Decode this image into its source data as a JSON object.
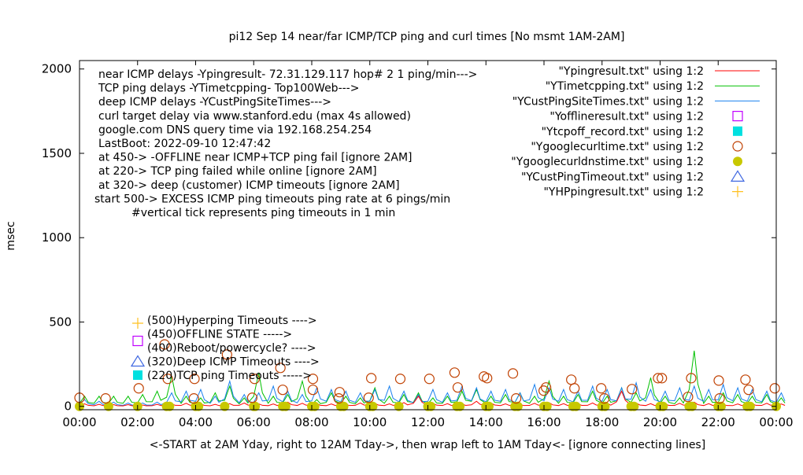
{
  "chart_data": {
    "type": "line",
    "title": "pi12 Sep 14  near/far ICMP/TCP ping and curl times [No msmt 1AM-2AM]",
    "xlabel": "<-START at 2AM Yday, right to 12AM Tday->, then wrap left to 1AM Tday<- [ignore connecting lines]",
    "ylabel": "msec",
    "xlim": [
      0,
      24
    ],
    "ylim": [
      -20,
      2050
    ],
    "x_unit": "hours",
    "x_ticks": [
      "00:00",
      "02:00",
      "04:00",
      "06:00",
      "08:00",
      "10:00",
      "12:00",
      "14:00",
      "16:00",
      "18:00",
      "20:00",
      "22:00",
      "00:00"
    ],
    "y_ticks": [
      0,
      500,
      1000,
      1500,
      2000
    ],
    "grid": false,
    "legend_position": "top-right",
    "annotations": [
      "near ICMP delays -Ypingresult- 72.31.129.117 hop# 2 1 ping/min--->",
      "TCP ping delays -YTimetcpping- Top100Web--->",
      "deep ICMP delays -YCustPingSiteTimes--->",
      "curl target delay via www.stanford.edu (max 4s allowed)",
      "google.com DNS query time via 192.168.254.254",
      "LastBoot: 2022-09-10 12:47:42",
      "at 450-> -OFFLINE near ICMP+TCP ping fail [ignore 2AM]",
      "at 220-> TCP ping failed while online [ignore 2AM]",
      "at 320-> deep (customer) ICMP timeouts [ignore 2AM]",
      "start 500-> EXCESS ICMP ping timeouts ping rate at 6 pings/min",
      "#vertical tick represents ping timeouts in 1 min"
    ],
    "key_labels": [
      {
        "text": "(500)Hyperping Timeouts ---->",
        "symbol": "plus",
        "color": "#ffc020"
      },
      {
        "text": "(450)OFFLINE STATE ----->",
        "symbol": "open-square",
        "color": "#c000ff"
      },
      {
        "text": "(400)Reboot/powercycle? ---->",
        "symbol": "none",
        "color": "#000000"
      },
      {
        "text": "(320)Deep ICMP Timeouts ---->",
        "symbol": "open-triangle",
        "color": "#4169e1"
      },
      {
        "text": "(220)TCP ping Timeouts ----->",
        "symbol": "filled-square",
        "color": "#00e0e0"
      }
    ],
    "legend": [
      {
        "name": "\"Ypingresult.txt\" using 1:2",
        "style": "line",
        "color": "#ff0000"
      },
      {
        "name": "\"YTimetcpping.txt\" using 1:2",
        "style": "line",
        "color": "#00c000"
      },
      {
        "name": "\"YCustPingSiteTimes.txt\" using 1:2",
        "style": "line",
        "color": "#1a80ee"
      },
      {
        "name": "\"Yofflineresult.txt\" using 1:2",
        "style": "open-square",
        "color": "#c000ff"
      },
      {
        "name": "\"Ytcpoff_record.txt\" using 1:2",
        "style": "filled-square",
        "color": "#00e0e0"
      },
      {
        "name": "\"Ygooglecurltime.txt\" using 1:2",
        "style": "open-circle",
        "color": "#c04000"
      },
      {
        "name": "\"Ygooglecurldnstime.txt\" using 1:2",
        "style": "filled-circle",
        "color": "#c8c800"
      },
      {
        "name": "\"YCustPingTimeout.txt\" using 1:2",
        "style": "open-triangle",
        "color": "#4169e1"
      },
      {
        "name": "\"YHPpingresult.txt\" using 1:2",
        "style": "plus",
        "color": "#ffc020"
      }
    ],
    "series": [
      {
        "key": "ping",
        "step_hours": 0.5,
        "values": [
          15,
          12,
          10,
          10,
          8,
          12,
          15,
          18,
          14,
          12,
          16,
          20,
          15,
          14,
          25,
          18,
          16,
          14,
          12,
          20,
          18,
          15,
          22,
          60,
          18,
          16,
          14,
          30,
          20,
          15,
          12,
          18,
          22,
          16,
          14,
          20,
          18,
          90,
          20,
          16,
          14,
          18,
          25,
          16,
          12,
          14,
          15,
          18,
          14
        ]
      },
      {
        "key": "tcp",
        "step_hours": 0.5,
        "values": [
          60,
          60,
          60,
          60,
          70,
          90,
          180,
          60,
          50,
          80,
          120,
          50,
          200,
          60,
          70,
          150,
          40,
          80,
          60,
          50,
          110,
          60,
          70,
          80,
          50,
          60,
          90,
          100,
          60,
          70,
          80,
          60,
          150,
          60,
          70,
          90,
          60,
          110,
          80,
          170,
          60,
          50,
          330,
          60,
          80,
          70,
          60,
          70,
          50
        ]
      },
      {
        "key": "cust",
        "step_hours": 0.5,
        "values": [
          40,
          30,
          25,
          20,
          20,
          25,
          80,
          90,
          100,
          60,
          150,
          70,
          80,
          120,
          90,
          70,
          110,
          100,
          90,
          80,
          100,
          120,
          90,
          70,
          100,
          80,
          120,
          110,
          90,
          100,
          80,
          130,
          110,
          100,
          90,
          120,
          100,
          110,
          140,
          100,
          90,
          110,
          120,
          100,
          130,
          110,
          100,
          90,
          80
        ]
      }
    ],
    "curl_points": [
      [
        0.0,
        51
      ],
      [
        0.9,
        47
      ],
      [
        2.04,
        107
      ],
      [
        2.93,
        367
      ],
      [
        3.04,
        163
      ],
      [
        3.96,
        163
      ],
      [
        3.94,
        47
      ],
      [
        5.08,
        307
      ],
      [
        5.95,
        51
      ],
      [
        6.03,
        163
      ],
      [
        6.92,
        228
      ],
      [
        7.0,
        98
      ],
      [
        8.04,
        98
      ],
      [
        8.04,
        163
      ],
      [
        8.96,
        84
      ],
      [
        8.93,
        47
      ],
      [
        9.96,
        51
      ],
      [
        10.05,
        167
      ],
      [
        11.05,
        163
      ],
      [
        12.05,
        163
      ],
      [
        12.92,
        200
      ],
      [
        13.03,
        112
      ],
      [
        13.93,
        177
      ],
      [
        14.04,
        167
      ],
      [
        14.93,
        195
      ],
      [
        15.04,
        47
      ],
      [
        15.99,
        93
      ],
      [
        16.07,
        112
      ],
      [
        16.94,
        158
      ],
      [
        17.05,
        107
      ],
      [
        17.97,
        107
      ],
      [
        18.08,
        47
      ],
      [
        19.03,
        102
      ],
      [
        19.93,
        167
      ],
      [
        20.06,
        167
      ],
      [
        21.07,
        167
      ],
      [
        20.96,
        56
      ],
      [
        22.02,
        153
      ],
      [
        22.05,
        47
      ],
      [
        22.94,
        158
      ],
      [
        23.05,
        98
      ],
      [
        23.95,
        107
      ]
    ],
    "dns_points": [
      [
        0,
        0
      ],
      [
        1,
        0
      ],
      [
        2,
        0
      ],
      [
        3,
        0
      ],
      [
        3.1,
        0
      ],
      [
        4,
        0
      ],
      [
        4.1,
        0
      ],
      [
        5,
        0
      ],
      [
        6,
        0
      ],
      [
        6.05,
        0
      ],
      [
        7,
        0
      ],
      [
        7.1,
        0
      ],
      [
        8,
        0
      ],
      [
        8.1,
        0
      ],
      [
        9,
        0
      ],
      [
        9.1,
        0
      ],
      [
        10,
        0
      ],
      [
        10.1,
        0
      ],
      [
        11,
        0
      ],
      [
        12,
        0
      ],
      [
        12.1,
        0
      ],
      [
        13,
        0
      ],
      [
        13.1,
        0
      ],
      [
        14,
        0
      ],
      [
        14.1,
        0
      ],
      [
        15,
        0
      ],
      [
        15.1,
        0
      ],
      [
        16,
        0
      ],
      [
        16.1,
        0
      ],
      [
        17,
        0
      ],
      [
        17.1,
        0
      ],
      [
        18,
        0
      ],
      [
        18.1,
        0
      ],
      [
        19,
        0
      ],
      [
        19.1,
        0
      ],
      [
        20,
        0
      ],
      [
        20.1,
        0
      ],
      [
        21,
        0
      ],
      [
        21.1,
        0
      ],
      [
        22,
        0
      ],
      [
        22.1,
        0
      ],
      [
        23,
        0
      ],
      [
        23.1,
        0
      ],
      [
        24,
        0
      ]
    ]
  }
}
